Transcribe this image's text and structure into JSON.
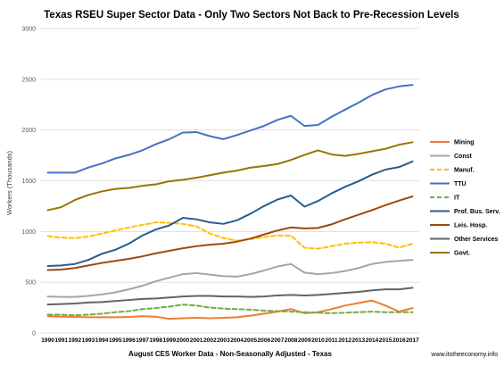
{
  "chart_data": {
    "type": "line",
    "title": "Texas RSEU Super Sector Data - Only Two Sectors Not Back to Pre-Recession Levels",
    "xlabel": "August CES Worker Data - Non-Seasonally Adjusted - Texas",
    "ylabel": "Workers (Thousands)",
    "ylim": [
      0,
      3000
    ],
    "yticks": [
      "0",
      "500",
      "1000",
      "1500",
      "2000",
      "2500",
      "3000"
    ],
    "grid": true,
    "legend_position": "right",
    "x": [
      "1990",
      "1991",
      "1992",
      "1993",
      "1994",
      "1995",
      "1996",
      "1997",
      "1998",
      "1999",
      "2000",
      "2001",
      "2002",
      "2003",
      "2004",
      "2005",
      "2006",
      "2007",
      "2008",
      "2009",
      "2010",
      "2011",
      "2012",
      "2013",
      "2014",
      "2015",
      "2016",
      "2017"
    ],
    "series": [
      {
        "name": "Mining",
        "color": "#ed7d31",
        "dash": "solid",
        "values": [
          165,
          160,
          158,
          155,
          155,
          155,
          158,
          165,
          160,
          140,
          145,
          150,
          145,
          150,
          155,
          170,
          190,
          210,
          235,
          195,
          205,
          235,
          270,
          295,
          320,
          270,
          210,
          245
        ]
      },
      {
        "name": "Const",
        "color": "#a5a5a5",
        "dash": "solid",
        "values": [
          360,
          355,
          355,
          365,
          380,
          400,
          430,
          465,
          510,
          545,
          580,
          590,
          575,
          560,
          555,
          580,
          615,
          655,
          680,
          595,
          580,
          590,
          610,
          640,
          680,
          700,
          710,
          720
        ]
      },
      {
        "name": "Manuf.",
        "color": "#ffc000",
        "dash": "dashed",
        "values": [
          955,
          940,
          935,
          950,
          980,
          1010,
          1040,
          1065,
          1090,
          1085,
          1075,
          1050,
          980,
          935,
          910,
          925,
          945,
          960,
          960,
          840,
          830,
          855,
          880,
          890,
          895,
          880,
          840,
          880
        ]
      },
      {
        "name": "TTU",
        "color": "#4472c4",
        "dash": "solid",
        "values": [
          1580,
          1580,
          1580,
          1630,
          1670,
          1720,
          1755,
          1800,
          1860,
          1910,
          1975,
          1980,
          1940,
          1910,
          1950,
          1995,
          2040,
          2100,
          2140,
          2040,
          2050,
          2130,
          2200,
          2270,
          2345,
          2400,
          2430,
          2445
        ]
      },
      {
        "name": "IT",
        "color": "#70ad47",
        "dash": "dashed",
        "values": [
          180,
          180,
          175,
          180,
          190,
          205,
          215,
          235,
          245,
          260,
          280,
          270,
          250,
          240,
          235,
          230,
          220,
          215,
          210,
          205,
          200,
          195,
          200,
          205,
          210,
          205,
          205,
          205
        ]
      },
      {
        "name": "Prof. Bus. Serv.",
        "color": "#255e91",
        "dash": "solid",
        "values": [
          660,
          665,
          680,
          720,
          780,
          820,
          880,
          960,
          1020,
          1060,
          1135,
          1120,
          1090,
          1075,
          1110,
          1175,
          1250,
          1315,
          1355,
          1245,
          1300,
          1375,
          1440,
          1495,
          1560,
          1610,
          1635,
          1690
        ]
      },
      {
        "name": "Leis. Hosp.",
        "color": "#9e480e",
        "dash": "solid",
        "values": [
          620,
          625,
          640,
          665,
          690,
          710,
          730,
          755,
          785,
          810,
          835,
          855,
          870,
          880,
          900,
          930,
          970,
          1010,
          1040,
          1030,
          1035,
          1070,
          1120,
          1165,
          1210,
          1260,
          1305,
          1345
        ]
      },
      {
        "name": "Other Services",
        "color": "#636363",
        "dash": "solid",
        "values": [
          280,
          285,
          290,
          300,
          305,
          315,
          325,
          335,
          340,
          350,
          360,
          365,
          365,
          360,
          360,
          355,
          360,
          370,
          375,
          370,
          375,
          385,
          395,
          405,
          420,
          430,
          430,
          445
        ]
      },
      {
        "name": "Govt.",
        "color": "#997300",
        "dash": "solid",
        "values": [
          1210,
          1240,
          1310,
          1360,
          1395,
          1420,
          1430,
          1450,
          1465,
          1495,
          1510,
          1530,
          1555,
          1580,
          1600,
          1630,
          1645,
          1665,
          1705,
          1755,
          1800,
          1760,
          1745,
          1765,
          1790,
          1815,
          1855,
          1880
        ]
      }
    ]
  },
  "source_text": "www.itstheeconomy.info"
}
